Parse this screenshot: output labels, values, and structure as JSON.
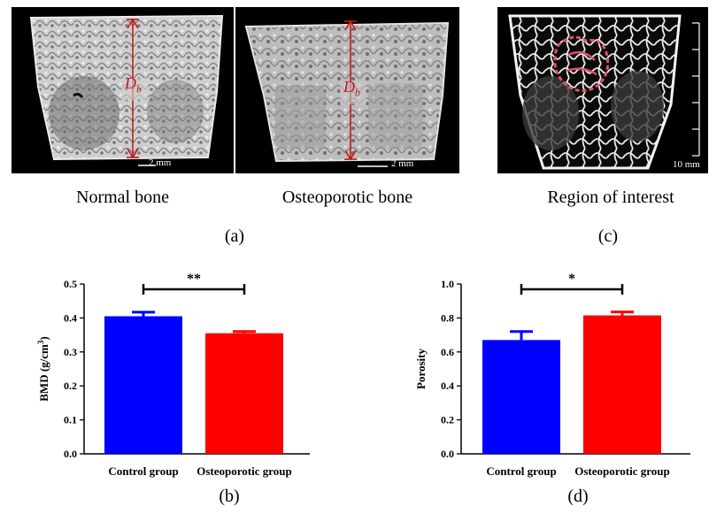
{
  "panel_a": {
    "images": [
      {
        "caption": "Normal bone",
        "dimension_label": "D",
        "dimension_sub": "b",
        "scale_text": "2 mm"
      },
      {
        "caption": "Osteoporotic bone",
        "dimension_label": "D",
        "dimension_sub": "b",
        "scale_text": "2 mm"
      }
    ],
    "label": "(a)"
  },
  "panel_c": {
    "caption": "Region of interest",
    "scale_text": "10 mm",
    "label": "(c)"
  },
  "chart_data": [
    {
      "type": "bar",
      "panel_label": "(b)",
      "categories": [
        "Control group",
        "Osteoporotic group"
      ],
      "values": [
        0.405,
        0.355
      ],
      "errors": [
        0.012,
        0.005
      ],
      "colors": [
        "#0000ff",
        "#ff0000"
      ],
      "ylabel_main": "BMD (g/cm",
      "ylabel_sup": "3",
      "ylabel_end": ")",
      "ylim": [
        0,
        0.5
      ],
      "yticks": [
        "0.0",
        "0.1",
        "0.2",
        "0.3",
        "0.4",
        "0.5"
      ],
      "significance": "**",
      "grid": false
    },
    {
      "type": "bar",
      "panel_label": "(d)",
      "categories": [
        "Control group",
        "Osteoporotic group"
      ],
      "values": [
        0.67,
        0.815
      ],
      "errors": [
        0.05,
        0.02
      ],
      "colors": [
        "#0000ff",
        "#ff0000"
      ],
      "ylabel_main": "Porosity",
      "ylabel_sup": "",
      "ylabel_end": "",
      "ylim": [
        0,
        1.0
      ],
      "yticks": [
        "0.0",
        "0.2",
        "0.4",
        "0.6",
        "0.8",
        "1.0"
      ],
      "significance": "*",
      "grid": false
    }
  ]
}
